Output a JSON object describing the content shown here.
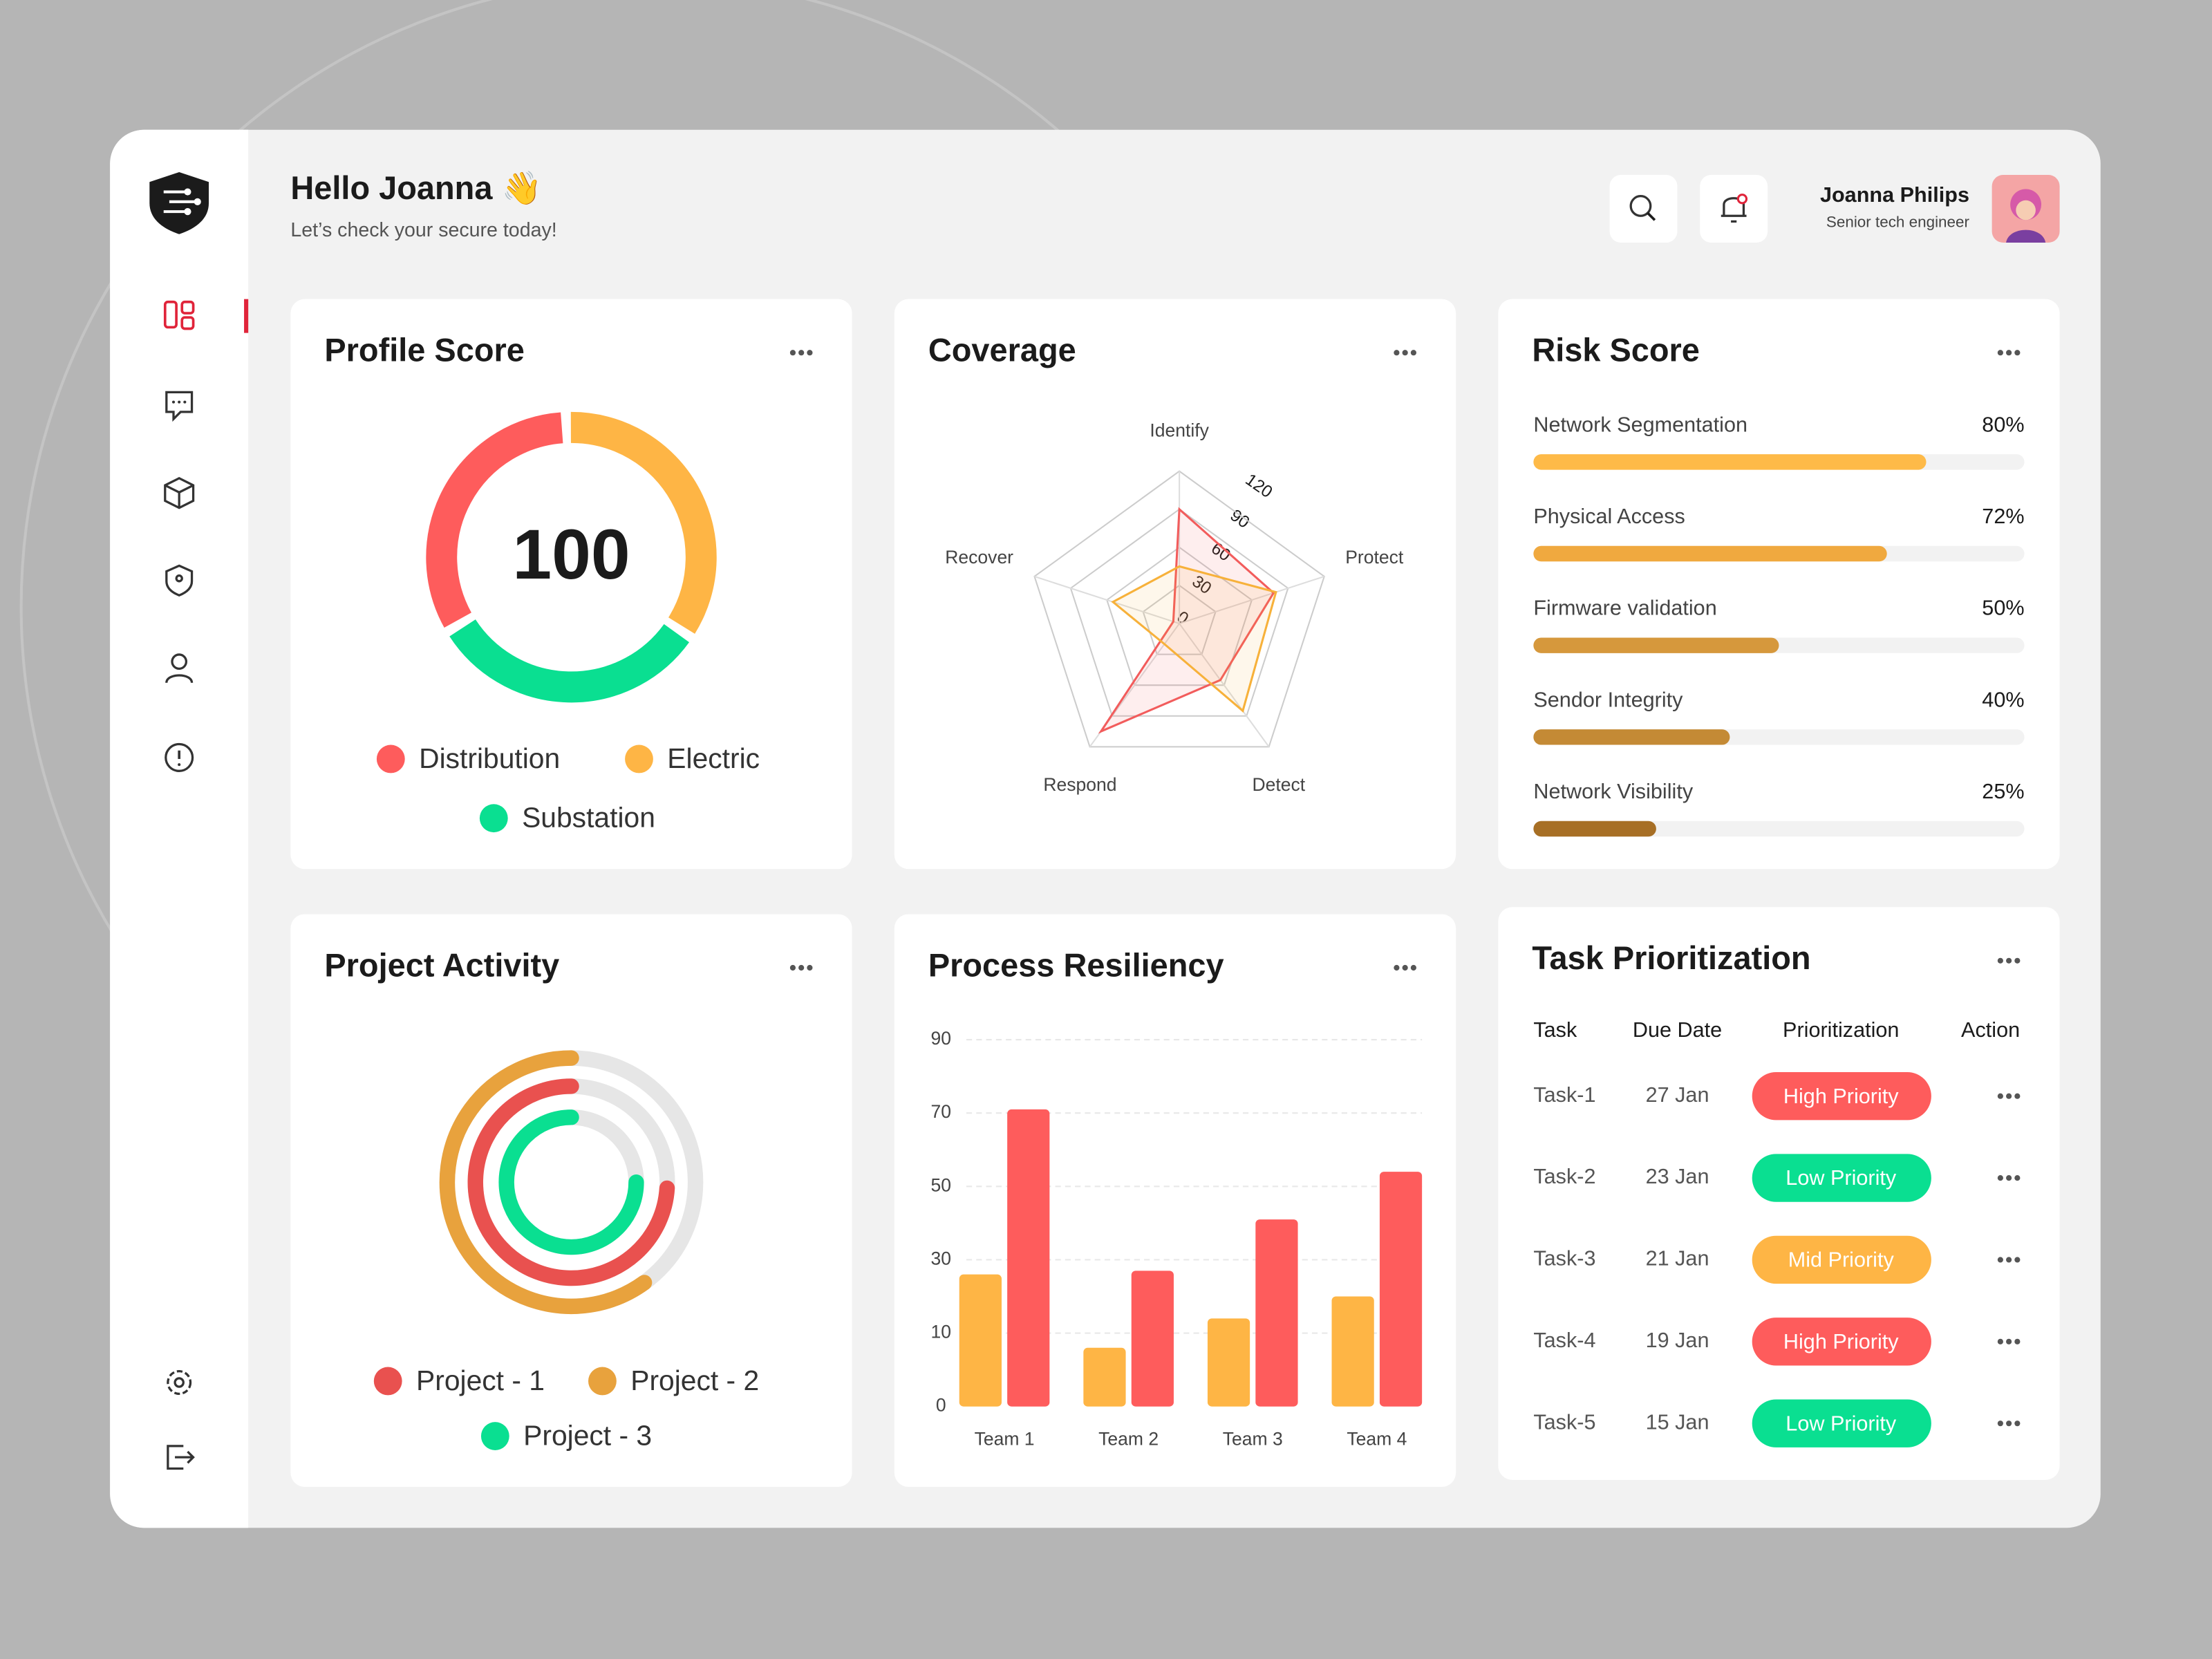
{
  "header": {
    "greeting": "Hello Joanna 👋",
    "subtitle": "Let’s check your secure today!",
    "user_name": "Joanna Philips",
    "user_role": "Senior tech engineer"
  },
  "profile_score": {
    "type": "donut",
    "title": "Profile Score",
    "score": 100,
    "series": [
      {
        "name": "Distribution",
        "color": "#fe5c5c",
        "value": 33
      },
      {
        "name": "Electric",
        "color": "#feb545",
        "value": 35
      },
      {
        "name": "Substation",
        "color": "#0adf91",
        "value": 32
      }
    ]
  },
  "coverage": {
    "type": "radar",
    "title": "Coverage",
    "axes": [
      "Identify",
      "Protect",
      "Detect",
      "Respond",
      "Recover"
    ],
    "rlim": [
      0,
      120
    ],
    "rticks": [
      0,
      30,
      60,
      90,
      120
    ],
    "series": [
      {
        "color": "#f25c5c",
        "values": [
          90,
          78,
          55,
          105,
          5
        ]
      },
      {
        "color": "#f7b13a",
        "values": [
          45,
          80,
          85,
          20,
          55
        ]
      }
    ]
  },
  "risk_score": {
    "type": "progress",
    "title": "Risk Score",
    "xlim": [
      0,
      100
    ],
    "categories": [
      "Network Segmentation",
      "Physical Access",
      "Firmware validation",
      "Sendor Integrity",
      "Network Visibility"
    ],
    "values": [
      80,
      72,
      50,
      40,
      25
    ],
    "value_labels": [
      "80%",
      "72%",
      "50%",
      "40%",
      "25%"
    ],
    "colors": [
      "#feba48",
      "#f0a93f",
      "#d6983c",
      "#c48a35",
      "#a76f25"
    ]
  },
  "project_activity": {
    "type": "rings",
    "title": "Project Activity",
    "lim": [
      0,
      100
    ],
    "series": [
      {
        "name": "Project - 1",
        "color": "#e9514f",
        "value": 74
      },
      {
        "name": "Project - 2",
        "color": "#e8a23d",
        "value": 60
      },
      {
        "name": "Project - 3",
        "color": "#0adf91",
        "value": 75
      }
    ]
  },
  "process_resiliency": {
    "type": "bar",
    "title": "Process Resiliency",
    "categories": [
      "Team 1",
      "Team 2",
      "Team 3",
      "Team 4"
    ],
    "ylim": [
      0,
      90
    ],
    "yticks": [
      0,
      10,
      30,
      50,
      70,
      90
    ],
    "grid": true,
    "series": [
      {
        "color": "#feb545",
        "values": [
          26,
          8,
          14,
          20
        ]
      },
      {
        "color": "#fe5c5c",
        "values": [
          71,
          27,
          41,
          54
        ]
      }
    ]
  },
  "task_prioritization": {
    "title": "Task Prioritization",
    "columns": [
      "Task",
      "Due Date",
      "Prioritization",
      "Action"
    ],
    "rows": [
      [
        "Task-1",
        "27 Jan",
        "High Priority"
      ],
      [
        "Task-2",
        "23 Jan",
        "Low Priority"
      ],
      [
        "Task-3",
        "21 Jan",
        "Mid Priority"
      ],
      [
        "Task-4",
        "19 Jan",
        "High Priority"
      ],
      [
        "Task-5",
        "15 Jan",
        "Low Priority"
      ]
    ],
    "row_colors": [
      "#fe5c5c",
      "#0adf91",
      "#feb545",
      "#fe5c5c",
      "#0adf91"
    ]
  }
}
